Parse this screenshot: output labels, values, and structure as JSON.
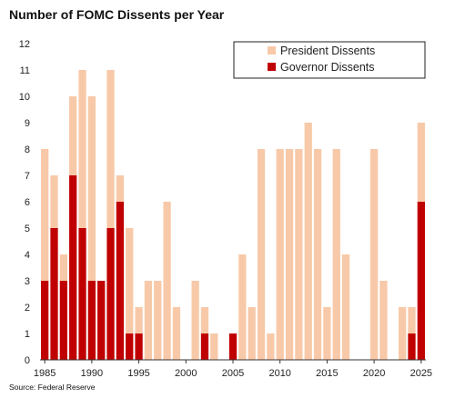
{
  "title": "Number of FOMC Dissents per Year",
  "source": "Source: Federal Reserve",
  "colors": {
    "president": "#F8C9A8",
    "governor": "#C00000",
    "axis": "#333333"
  },
  "chart_data": {
    "type": "bar",
    "stacked": true,
    "years": [
      1985,
      1986,
      1987,
      1988,
      1989,
      1990,
      1991,
      1992,
      1993,
      1994,
      1995,
      1996,
      1997,
      1998,
      1999,
      2000,
      2001,
      2002,
      2003,
      2004,
      2005,
      2006,
      2007,
      2008,
      2009,
      2010,
      2011,
      2012,
      2013,
      2014,
      2015,
      2016,
      2017,
      2018,
      2019,
      2020,
      2021,
      2022,
      2023,
      2024,
      2025
    ],
    "series": [
      {
        "name": "Governor Dissents",
        "values": [
          3,
          5,
          3,
          7,
          5,
          3,
          3,
          5,
          6,
          1,
          1,
          0,
          0,
          0,
          0,
          0,
          0,
          1,
          0,
          0,
          1,
          0,
          0,
          0,
          0,
          0,
          0,
          0,
          0,
          0,
          0,
          0,
          0,
          0,
          0,
          0,
          0,
          0,
          0,
          1,
          6
        ]
      },
      {
        "name": "President Dissents",
        "values": [
          5,
          2,
          1,
          3,
          6,
          7,
          0,
          6,
          1,
          4,
          1,
          3,
          3,
          6,
          2,
          0,
          3,
          1,
          1,
          0,
          0,
          4,
          2,
          8,
          1,
          8,
          8,
          8,
          9,
          8,
          2,
          8,
          4,
          0,
          0,
          8,
          3,
          0,
          2,
          1,
          3
        ]
      }
    ],
    "xticks": [
      "1985",
      "1990",
      "1995",
      "2000",
      "2005",
      "2010",
      "2015",
      "2020",
      "2025"
    ],
    "yticks": [
      "0",
      "1",
      "2",
      "3",
      "4",
      "5",
      "6",
      "7",
      "8",
      "9",
      "10",
      "11",
      "12"
    ],
    "ylim": [
      0,
      12
    ],
    "xlim": [
      1985,
      2025
    ],
    "legend_position": "top-right"
  }
}
